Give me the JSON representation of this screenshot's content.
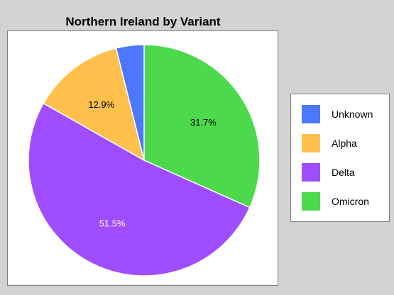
{
  "chart_data": {
    "type": "pie",
    "title": "Northern Ireland by Variant",
    "slices": [
      {
        "label": "Omicron",
        "value": 31.7,
        "value_label": "31.7%",
        "color": "#4cd94c"
      },
      {
        "label": "Delta",
        "value": 51.5,
        "value_label": "51.5%",
        "color": "#a04cff"
      },
      {
        "label": "Alpha",
        "value": 12.9,
        "value_label": "12.9%",
        "color": "#ffc04c"
      },
      {
        "label": "Unknown",
        "value": 3.9,
        "value_label": "",
        "color": "#4c78ff"
      }
    ],
    "legend": {
      "position": "right",
      "entries": [
        "Unknown",
        "Alpha",
        "Delta",
        "Omicron"
      ]
    }
  }
}
